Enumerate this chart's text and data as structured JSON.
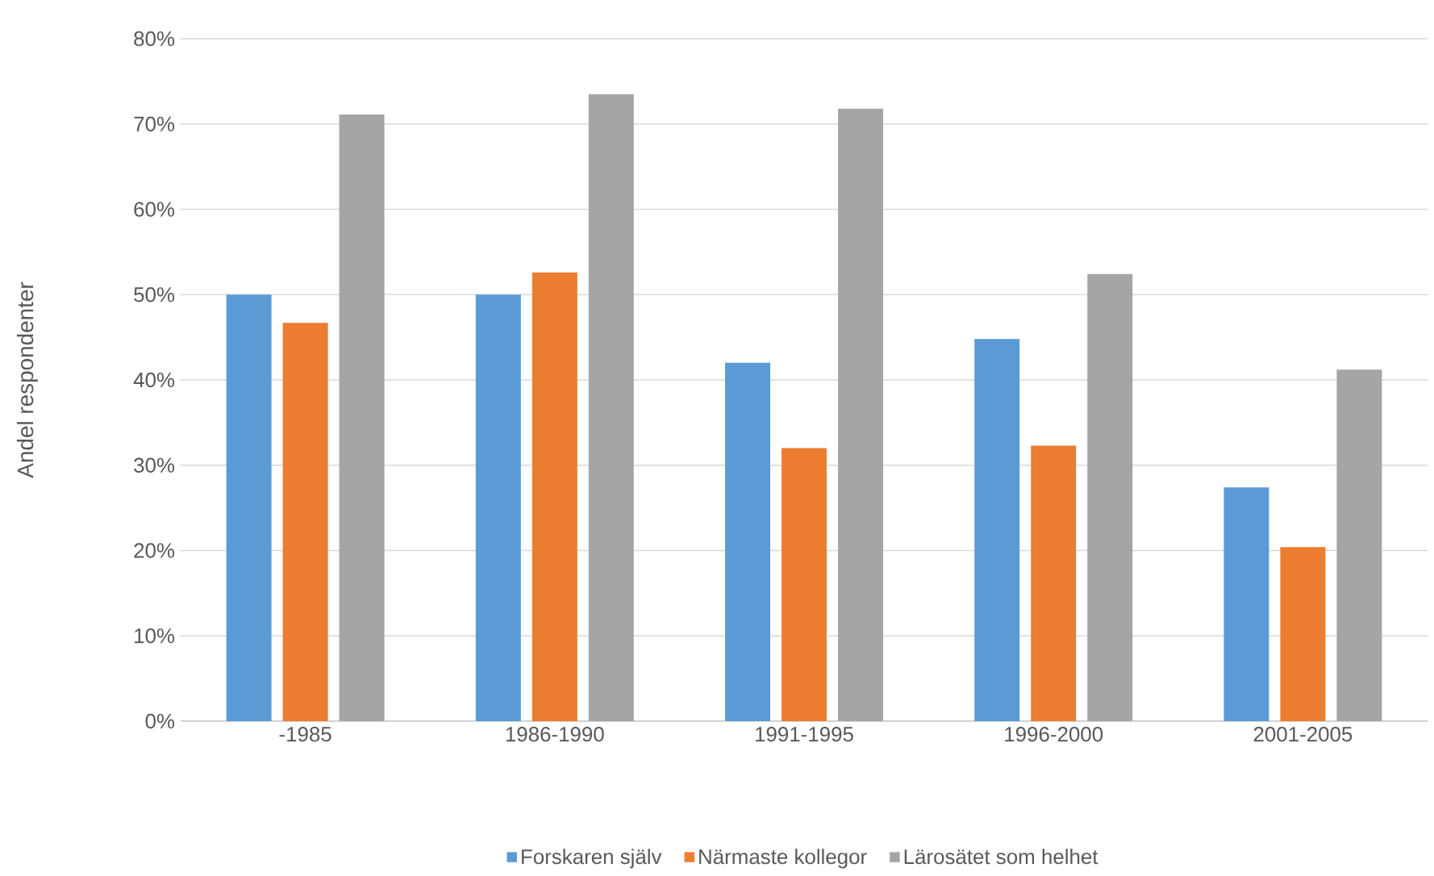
{
  "chart_data": {
    "type": "bar",
    "ylabel": "Andel respondenter",
    "categories": [
      "-1985",
      "1986-1990",
      "1991-1995",
      "1996-2000",
      "2001-2005"
    ],
    "series": [
      {
        "name": "Forskaren själv",
        "color": "#5b9bd5",
        "values": [
          50,
          50,
          42,
          44.8,
          27.4
        ]
      },
      {
        "name": "Närmaste kollegor",
        "color": "#ed7d31",
        "values": [
          46.7,
          52.6,
          32,
          32.3,
          20.4
        ]
      },
      {
        "name": "Lärosätet som helhet",
        "color": "#a5a5a5",
        "values": [
          71.1,
          73.5,
          71.8,
          52.4,
          41.2
        ]
      }
    ],
    "ylim": [
      0,
      80
    ],
    "yticks": [
      {
        "value": 0,
        "label": "0%"
      },
      {
        "value": 10,
        "label": "10%"
      },
      {
        "value": 20,
        "label": "20%"
      },
      {
        "value": 30,
        "label": "30%"
      },
      {
        "value": 40,
        "label": "40%"
      },
      {
        "value": 50,
        "label": "50%"
      },
      {
        "value": 60,
        "label": "60%"
      },
      {
        "value": 70,
        "label": "70%"
      },
      {
        "value": 80,
        "label": "80%"
      }
    ],
    "grid": "y",
    "legend": "bottom"
  }
}
